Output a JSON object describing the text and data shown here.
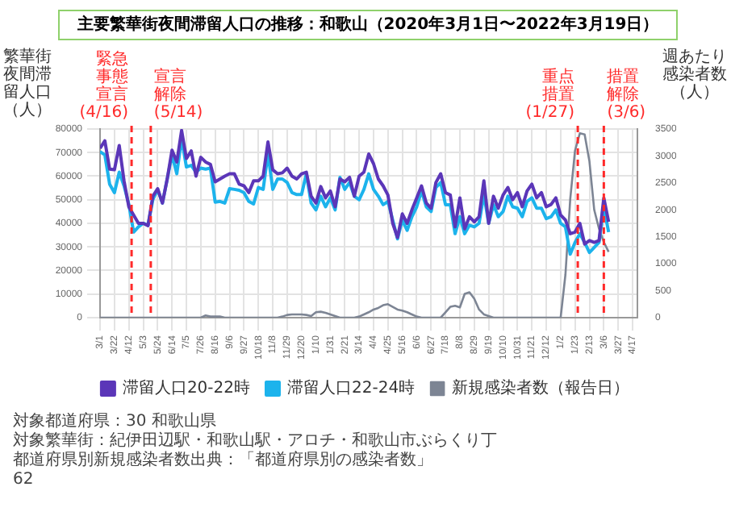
{
  "chart_data": {
    "type": "line",
    "title": "主要繁華街夜間滞留人口の推移：和歌山（2020年3月1日〜2022年3月19日）",
    "ylabel": "繁華街夜間滞留人口（人）",
    "y2label": "週あたり感染者数（人）",
    "x": [
      "2020-03-01",
      "2020-03-08",
      "2020-03-15",
      "2020-03-22",
      "2020-03-29",
      "2020-04-05",
      "2020-04-12",
      "2020-04-19",
      "2020-04-26",
      "2020-05-03",
      "2020-05-10",
      "2020-05-17",
      "2020-05-24",
      "2020-05-31",
      "2020-06-07",
      "2020-06-14",
      "2020-06-21",
      "2020-06-28",
      "2020-07-05",
      "2020-07-12",
      "2020-07-19",
      "2020-07-26",
      "2020-08-02",
      "2020-08-09",
      "2020-08-16",
      "2020-08-23",
      "2020-08-30",
      "2020-09-06",
      "2020-09-13",
      "2020-09-20",
      "2020-09-27",
      "2020-10-04",
      "2020-10-11",
      "2020-10-18",
      "2020-10-25",
      "2020-11-01",
      "2020-11-08",
      "2020-11-15",
      "2020-11-22",
      "2020-11-29",
      "2020-12-06",
      "2020-12-13",
      "2020-12-20",
      "2020-12-27",
      "2021-01-03",
      "2021-01-10",
      "2021-01-17",
      "2021-01-24",
      "2021-01-31",
      "2021-02-07",
      "2021-02-14",
      "2021-02-21",
      "2021-02-28",
      "2021-03-07",
      "2021-03-14",
      "2021-03-21",
      "2021-03-28",
      "2021-04-04",
      "2021-04-11",
      "2021-04-18",
      "2021-04-25",
      "2021-05-02",
      "2021-05-09",
      "2021-05-16",
      "2021-05-23",
      "2021-05-30",
      "2021-06-06",
      "2021-06-13",
      "2021-06-20",
      "2021-06-27",
      "2021-07-04",
      "2021-07-11",
      "2021-07-18",
      "2021-07-25",
      "2021-08-01",
      "2021-08-08",
      "2021-08-15",
      "2021-08-22",
      "2021-08-29",
      "2021-09-05",
      "2021-09-12",
      "2021-09-19",
      "2021-09-26",
      "2021-10-03",
      "2021-10-10",
      "2021-10-17",
      "2021-10-24",
      "2021-10-31",
      "2021-11-07",
      "2021-11-14",
      "2021-11-21",
      "2021-11-28",
      "2021-12-05",
      "2021-12-12",
      "2021-12-19",
      "2021-12-26",
      "2022-01-02",
      "2022-01-09",
      "2022-01-16",
      "2022-01-23",
      "2022-01-30",
      "2022-02-06",
      "2022-02-13",
      "2022-02-20",
      "2022-02-27",
      "2022-03-06",
      "2022-03-13"
    ],
    "series": [
      {
        "name": "滞留人口20-22時",
        "color": "#5b36b8",
        "values": [
          71800,
          75000,
          63000,
          62700,
          73000,
          58000,
          47000,
          43500,
          40000,
          40000,
          39000,
          51500,
          54700,
          48600,
          58800,
          71000,
          66000,
          79400,
          67500,
          70700,
          60000,
          68000,
          66000,
          65000,
          57600,
          58800,
          60000,
          61000,
          61000,
          56600,
          55900,
          53000,
          58000,
          58000,
          60000,
          74500,
          62700,
          61000,
          61400,
          63400,
          60000,
          58800,
          61000,
          61700,
          51500,
          48600,
          55600,
          50800,
          53700,
          47000,
          58800,
          57600,
          59500,
          51500,
          60000,
          61700,
          69400,
          65300,
          58800,
          55900,
          52000,
          40000,
          34000,
          44000,
          40000,
          45700,
          50800,
          55900,
          48600,
          46400,
          57300,
          61000,
          53000,
          52000,
          38500,
          50800,
          37700,
          42800,
          40600,
          42800,
          58000,
          40000,
          51500,
          46400,
          52000,
          55200,
          50000,
          53000,
          47000,
          53700,
          56600,
          50800,
          53000,
          47000,
          48000,
          50800,
          43500,
          41400,
          35600,
          36300,
          40000,
          31200,
          32700,
          31900,
          32700,
          50800,
          40600
        ]
      },
      {
        "name": "滞留人口22-24時",
        "color": "#1cb3ec",
        "values": [
          70400,
          69000,
          56600,
          53000,
          61700,
          55900,
          48000,
          36300,
          38500,
          40000,
          39200,
          50000,
          54400,
          48600,
          58800,
          69000,
          61000,
          76000,
          63900,
          64600,
          61700,
          63400,
          63000,
          63400,
          49000,
          49300,
          48600,
          54700,
          54400,
          54000,
          53000,
          49300,
          48200,
          55200,
          54400,
          69700,
          54400,
          58800,
          58800,
          57300,
          53000,
          52200,
          52200,
          61000,
          48600,
          45700,
          51500,
          47000,
          50800,
          45700,
          59500,
          54400,
          57300,
          51500,
          50000,
          54400,
          61000,
          54400,
          51500,
          47900,
          49300,
          41400,
          33400,
          41400,
          37000,
          42800,
          47000,
          53700,
          47000,
          45000,
          55200,
          57300,
          47900,
          47900,
          35600,
          42800,
          35600,
          39200,
          38500,
          40000,
          52200,
          40000,
          47900,
          42800,
          45000,
          51500,
          47000,
          46400,
          42800,
          49300,
          50800,
          46400,
          46400,
          42000,
          42800,
          45700,
          40000,
          38500,
          26900,
          31900,
          35600,
          31900,
          27600,
          29800,
          31900,
          47000,
          36300
        ]
      },
      {
        "name": "新規感染者数（報告日）",
        "axis": "y2",
        "color": "#7d8594",
        "values": [
          0,
          0,
          0,
          0,
          0,
          0,
          0,
          0,
          0,
          0,
          0,
          0,
          0,
          0,
          0,
          0,
          0,
          0,
          0,
          0,
          0,
          0,
          40,
          20,
          20,
          20,
          0,
          0,
          0,
          0,
          0,
          0,
          0,
          0,
          0,
          0,
          0,
          0,
          20,
          50,
          60,
          60,
          60,
          50,
          30,
          100,
          110,
          90,
          60,
          30,
          0,
          0,
          0,
          0,
          20,
          60,
          100,
          150,
          180,
          230,
          250,
          200,
          150,
          130,
          100,
          60,
          20,
          0,
          0,
          0,
          0,
          0,
          100,
          200,
          220,
          190,
          440,
          470,
          350,
          150,
          60,
          30,
          0,
          0,
          0,
          0,
          0,
          0,
          0,
          0,
          0,
          0,
          0,
          0,
          0,
          0,
          0,
          800,
          2200,
          3100,
          3420,
          3400,
          2900,
          2000,
          1650,
          1400,
          1220
        ]
      }
    ],
    "xlim": [
      "2020-03-01",
      "2022-04-24"
    ],
    "xticks": [
      {
        "value": "2020-03-01",
        "label": "3/1"
      },
      {
        "value": "2020-03-22",
        "label": "3/22"
      },
      {
        "value": "2020-04-12",
        "label": "4/12"
      },
      {
        "value": "2020-05-03",
        "label": "5/3"
      },
      {
        "value": "2020-05-24",
        "label": "5/24"
      },
      {
        "value": "2020-06-14",
        "label": "6/14"
      },
      {
        "value": "2020-07-05",
        "label": "7/5"
      },
      {
        "value": "2020-07-26",
        "label": "7/26"
      },
      {
        "value": "2020-08-16",
        "label": "8/16"
      },
      {
        "value": "2020-09-06",
        "label": "9/6"
      },
      {
        "value": "2020-09-27",
        "label": "9/27"
      },
      {
        "value": "2020-10-18",
        "label": "10/18"
      },
      {
        "value": "2020-11-08",
        "label": "11/8"
      },
      {
        "value": "2020-11-29",
        "label": "11/29"
      },
      {
        "value": "2020-12-20",
        "label": "12/20"
      },
      {
        "value": "2021-01-10",
        "label": "1/10"
      },
      {
        "value": "2021-01-31",
        "label": "1/31"
      },
      {
        "value": "2021-02-21",
        "label": "2/21"
      },
      {
        "value": "2021-03-14",
        "label": "3/14"
      },
      {
        "value": "2021-04-04",
        "label": "4/4"
      },
      {
        "value": "2021-04-25",
        "label": "4/25"
      },
      {
        "value": "2021-05-16",
        "label": "5/16"
      },
      {
        "value": "2021-06-06",
        "label": "6/6"
      },
      {
        "value": "2021-06-27",
        "label": "6/27"
      },
      {
        "value": "2021-07-18",
        "label": "7/18"
      },
      {
        "value": "2021-08-08",
        "label": "8/8"
      },
      {
        "value": "2021-08-29",
        "label": "8/29"
      },
      {
        "value": "2021-09-19",
        "label": "9/19"
      },
      {
        "value": "2021-10-10",
        "label": "10/10"
      },
      {
        "value": "2021-10-31",
        "label": "10/31"
      },
      {
        "value": "2021-11-21",
        "label": "11/21"
      },
      {
        "value": "2021-12-12",
        "label": "12/12"
      },
      {
        "value": "2022-01-02",
        "label": "1/2"
      },
      {
        "value": "2022-01-23",
        "label": "1/23"
      },
      {
        "value": "2022-02-13",
        "label": "2/13"
      },
      {
        "value": "2022-03-06",
        "label": "3/6"
      },
      {
        "value": "2022-03-27",
        "label": "3/27"
      },
      {
        "value": "2022-04-17",
        "label": "4/17"
      }
    ],
    "ylim": [
      0,
      80000
    ],
    "yticks": [
      0,
      10000,
      20000,
      30000,
      40000,
      50000,
      60000,
      70000,
      80000
    ],
    "y2lim": [
      0,
      3500
    ],
    "y2ticks": [
      0,
      500,
      1000,
      1500,
      2000,
      2500,
      3000,
      3500
    ],
    "ref_lines": [
      {
        "axis": "x",
        "value": "2020-04-16",
        "label": "緊急事態宣言(4/16)",
        "color": "#ff2a2a",
        "line_style": "dashed"
      },
      {
        "axis": "x",
        "value": "2020-05-14",
        "label": "宣言解除(5/14)",
        "color": "#ff2a2a",
        "line_style": "dashed"
      },
      {
        "axis": "x",
        "value": "2022-01-27",
        "label": "重点措置(1/27)",
        "color": "#ff2a2a",
        "line_style": "dashed"
      },
      {
        "axis": "x",
        "value": "2022-03-06",
        "label": "措置解除(3/6)",
        "color": "#ff2a2a",
        "line_style": "dashed"
      }
    ],
    "grid": true,
    "legend": "bottom",
    "marker": "none",
    "line_style": "solid",
    "annotations": [
      "対象都道府県：30 和歌山県",
      "対象繁華街：紀伊田辺駅・和歌山駅・アロチ・和歌山市ぶらくり丁",
      "都道府県別新規感染者数出典：「都道府県別の感染者数」",
      "62"
    ]
  }
}
